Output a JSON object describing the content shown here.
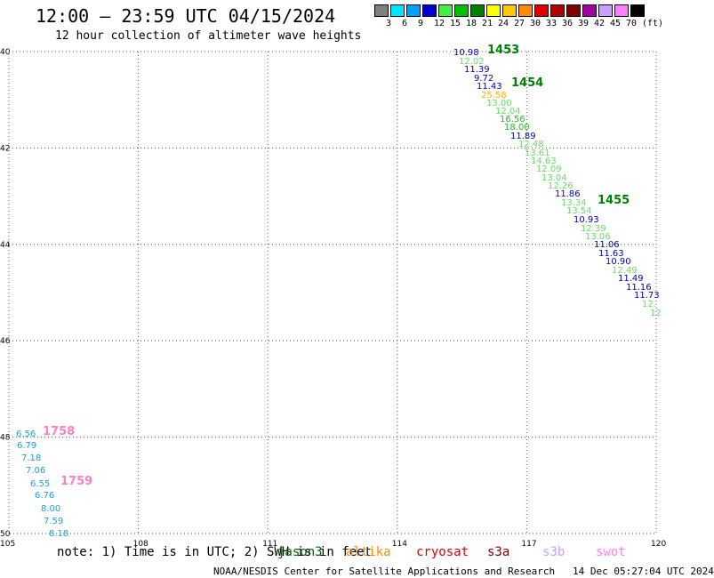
{
  "title": "12:00 — 23:59 UTC 04/15/2024",
  "subtitle": "12 hour collection of altimeter wave heights",
  "legend": {
    "unit": "(ft)",
    "colors": [
      "#808080",
      "#00e5ff",
      "#00a0ff",
      "#0000d0",
      "#44ee44",
      "#00c000",
      "#008000",
      "#ffff00",
      "#ffc800",
      "#ff8c00",
      "#e00000",
      "#b00000",
      "#800000",
      "#a000a0",
      "#c8a0ff",
      "#ff80ff",
      "#000000"
    ],
    "labels": [
      "3",
      "6",
      "9",
      "12",
      "15",
      "18",
      "21",
      "24",
      "27",
      "30",
      "33",
      "36",
      "39",
      "42",
      "45",
      "70"
    ]
  },
  "map": {
    "lat_labels": [
      "40",
      "42",
      "44",
      "46",
      "48",
      "50"
    ],
    "lon_labels": [
      "105",
      "108",
      "111",
      "114",
      "117",
      "120"
    ],
    "lat_range": [
      40,
      50
    ],
    "lon_range": [
      105,
      120
    ]
  },
  "tracks": [
    {
      "time": "1453",
      "color": "#008000"
    },
    {
      "time": "1454",
      "color": "#008000"
    },
    {
      "time": "1455",
      "color": "#008000"
    },
    {
      "time": "1758",
      "color": "#ff80c0"
    },
    {
      "time": "1759",
      "color": "#ff80c0"
    }
  ],
  "wave_labels": [
    {
      "v": "10.98",
      "c": "#0000c0"
    },
    {
      "v": "12.02",
      "c": "#66dd66"
    },
    {
      "v": "11.39",
      "c": "#0000c0"
    },
    {
      "v": "9.72",
      "c": "#0000c0"
    },
    {
      "v": "11.43",
      "c": "#0000c0"
    },
    {
      "v": "25.58",
      "c": "#ffb000"
    },
    {
      "v": "13.00",
      "c": "#66dd66"
    },
    {
      "v": "12.04",
      "c": "#66dd66"
    },
    {
      "v": "16.56",
      "c": "#22bb22"
    },
    {
      "v": "18.00",
      "c": "#22bb22"
    },
    {
      "v": "11.89",
      "c": "#0000c0"
    },
    {
      "v": "12.48",
      "c": "#66dd66"
    },
    {
      "v": "13.61",
      "c": "#66dd66"
    },
    {
      "v": "14.63",
      "c": "#66dd66"
    },
    {
      "v": "12.09",
      "c": "#66dd66"
    },
    {
      "v": "13.04",
      "c": "#66dd66"
    },
    {
      "v": "12.26",
      "c": "#66dd66"
    },
    {
      "v": "11.86",
      "c": "#0000c0"
    },
    {
      "v": "13.34",
      "c": "#66dd66"
    },
    {
      "v": "13.54",
      "c": "#66dd66"
    },
    {
      "v": "10.93",
      "c": "#0000c0"
    },
    {
      "v": "12.39",
      "c": "#66dd66"
    },
    {
      "v": "13.06",
      "c": "#66dd66"
    },
    {
      "v": "11.06",
      "c": "#0000c0"
    },
    {
      "v": "11.63",
      "c": "#0000c0"
    },
    {
      "v": "10.90",
      "c": "#0000c0"
    },
    {
      "v": "12.49",
      "c": "#66dd66"
    },
    {
      "v": "11.49",
      "c": "#0000c0"
    },
    {
      "v": "11.16",
      "c": "#0000c0"
    },
    {
      "v": "11.73",
      "c": "#0000c0"
    },
    {
      "v": "12.",
      "c": "#66dd66"
    },
    {
      "v": "12",
      "c": "#66dd66"
    },
    {
      "v": "6.56",
      "c": "#1ca0d0"
    },
    {
      "v": "6.79",
      "c": "#1ca0d0"
    },
    {
      "v": "7.18",
      "c": "#1ca0d0"
    },
    {
      "v": "7.06",
      "c": "#1ca0d0"
    },
    {
      "v": "6.55",
      "c": "#1ca0d0"
    },
    {
      "v": "6.76",
      "c": "#1ca0d0"
    },
    {
      "v": "8.00",
      "c": "#1ca0d0"
    },
    {
      "v": "7.59",
      "c": "#1ca0d0"
    },
    {
      "v": "8.18",
      "c": "#1ca0d0"
    }
  ],
  "footer": {
    "note": "note: 1) Time is in UTC; 2) SWH is in feet",
    "satellites": [
      {
        "name": "jason3",
        "color": "#006000"
      },
      {
        "name": "altika",
        "color": "#ff8c00"
      },
      {
        "name": "cryosat",
        "color": "#e00000"
      },
      {
        "name": "s3a",
        "color": "#800000"
      },
      {
        "name": "s3b",
        "color": "#c8a0ff"
      },
      {
        "name": "swot",
        "color": "#ff80ff"
      }
    ],
    "credit": "NOAA/NESDIS Center for Satellite Applications and Research   14 Dec 05:27:04 UTC 2024"
  }
}
